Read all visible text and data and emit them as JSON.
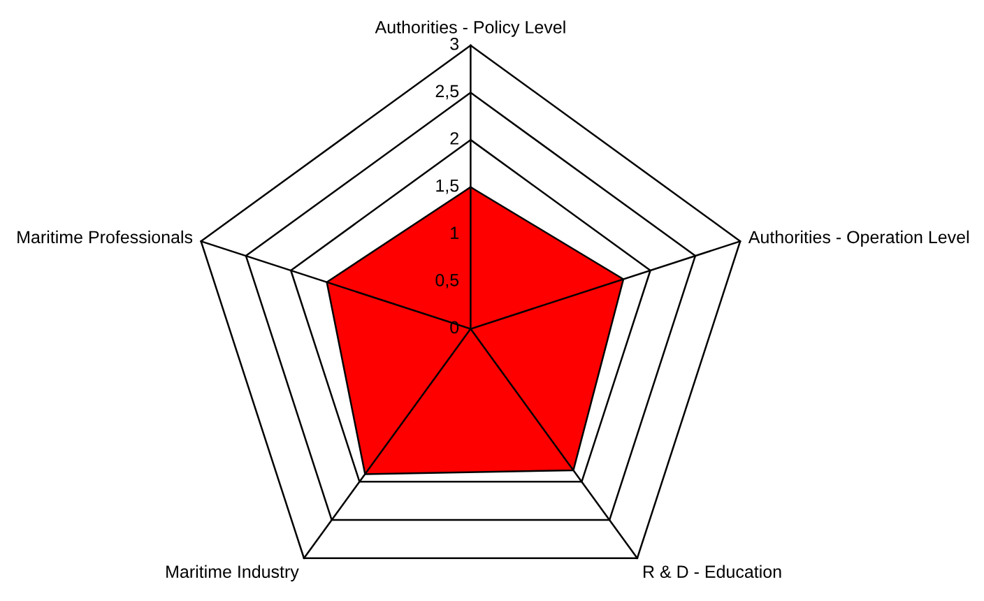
{
  "chart_data": {
    "type": "radar",
    "categories": [
      "Authorities - Policy Level",
      "Authorities - Operation Level",
      "R & D - Education",
      "Maritime Industry",
      "Maritime Professionals"
    ],
    "series": [
      {
        "color": "#ff0000",
        "values": [
          1.5,
          1.7,
          1.85,
          1.9,
          1.6
        ]
      }
    ],
    "ylim": [
      0,
      3
    ],
    "yticks": [
      0,
      {
        "value": 0.5,
        "label": "0,5"
      },
      1,
      {
        "value": 1.5,
        "label": "1,5"
      },
      2,
      {
        "value": 2.5,
        "label": "2,5"
      },
      3
    ],
    "grid": true
  }
}
